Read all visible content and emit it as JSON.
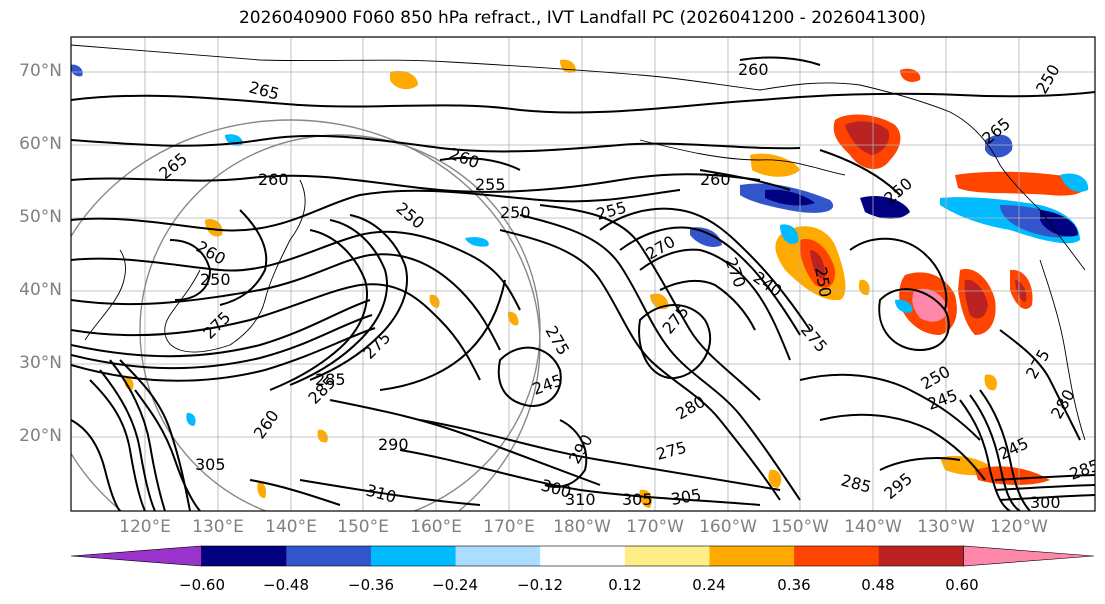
{
  "title": "2026040900 F060 850 hPa refract., IVT Landfall PC (2026041200 - 2026041300)",
  "lat_labels": [
    "70°N",
    "60°N",
    "50°N",
    "40°N",
    "30°N",
    "20°N"
  ],
  "lon_labels": [
    "120°E",
    "130°E",
    "140°E",
    "150°E",
    "160°E",
    "170°E",
    "180°W",
    "170°W",
    "160°W",
    "150°W",
    "140°W",
    "130°W",
    "120°W"
  ],
  "colorbar": {
    "colors": [
      "#9933cc",
      "#000080",
      "#3355cc",
      "#00bbff",
      "#aaddff",
      "#ffffff",
      "#ffee88",
      "#ffaa00",
      "#ff4400",
      "#bb2222",
      "#ff88aa"
    ],
    "ticks": [
      "−0.60",
      "−0.48",
      "−0.36",
      "−0.24",
      "−0.12",
      "0.12",
      "0.24",
      "0.36",
      "0.48",
      "0.60"
    ]
  },
  "contour_labels": [
    "265",
    "260",
    "265",
    "260",
    "255",
    "260",
    "250",
    "255",
    "250",
    "265",
    "260",
    "250",
    "270",
    "270",
    "260",
    "240",
    "250",
    "250",
    "275",
    "275",
    "245",
    "285",
    "275",
    "290",
    "280",
    "275",
    "285",
    "290",
    "260",
    "305",
    "275",
    "300",
    "310",
    "305",
    "310",
    "305",
    "285",
    "250",
    "245",
    "295",
    "245",
    "285",
    "300",
    "275",
    "280",
    "275",
    "250"
  ]
}
